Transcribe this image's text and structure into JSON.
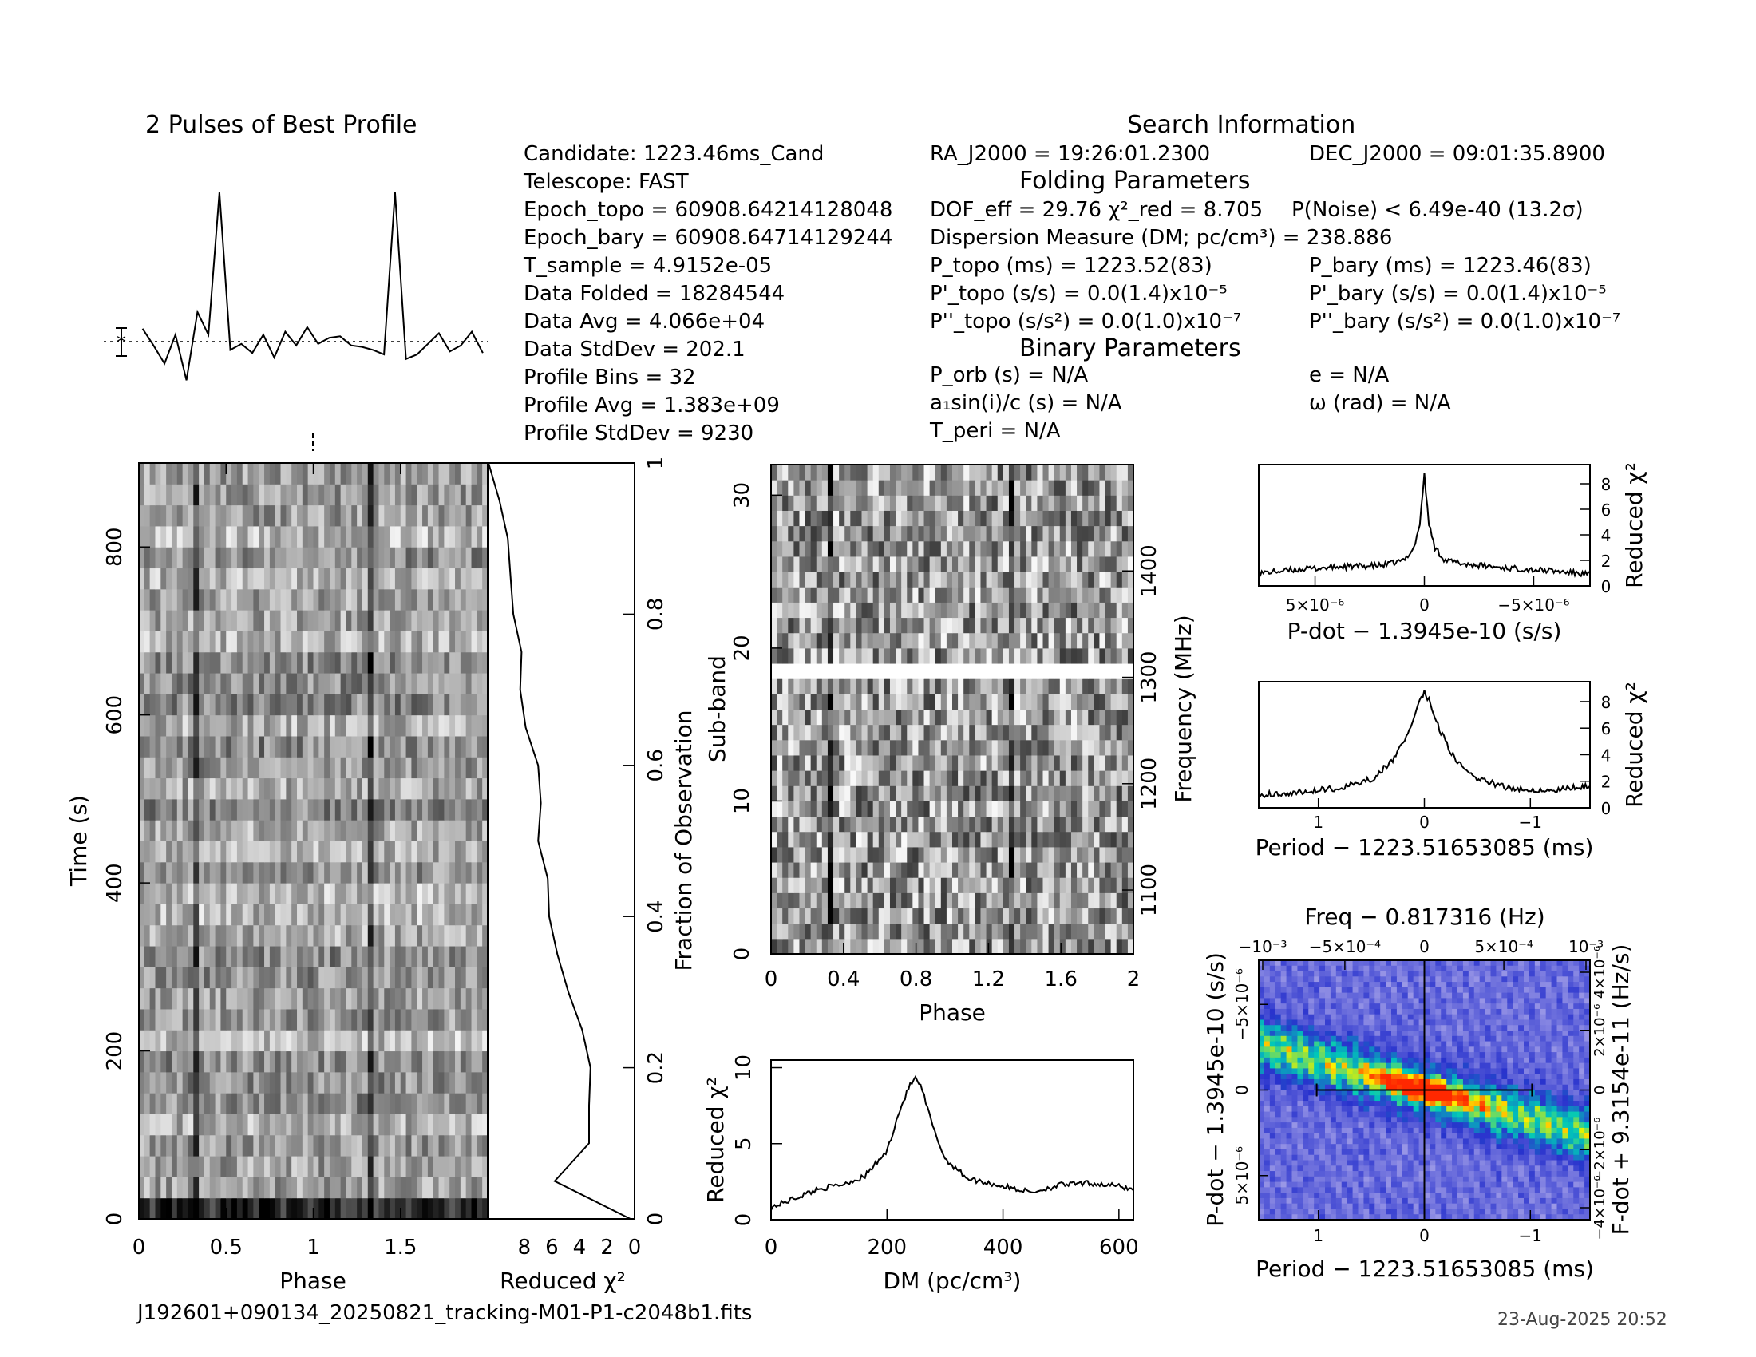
{
  "profile_title": "2 Pulses of Best Profile",
  "search_title": "Search Information",
  "folding_title": "Folding Parameters",
  "binary_title": "Binary Parameters",
  "info_left": [
    "Candidate:  1223.46ms_Cand",
    "Telescope:  FAST",
    "Epoch_topo = 60908.64214128048",
    "Epoch_bary = 60908.64714129244",
    "T_sample     =  4.9152e-05",
    "Data Folded    =  18284544",
    "Data Avg       =  4.066e+04",
    "Data StdDev    =  202.1",
    "Profile Bins   =  32",
    "Profile Avg    =  1.383e+09",
    "Profile StdDev =  9230"
  ],
  "info_mid": {
    "ra": "RA_J2000 = 19:26:01.2300",
    "dof": "DOF_eff = 29.76  χ²_red = 8.705",
    "dm": "Dispersion Measure (DM; pc/cm³) = 238.886",
    "ptopo": "P_topo (ms) =  1223.52(83)",
    "pdtopo": "P'_topo (s/s) = 0.0(1.4)x10⁻⁵",
    "pddtopo": "P''_topo (s/s²) = 0.0(1.0)x10⁻⁷",
    "porb": "P_orb (s) = N/A",
    "a1": "a₁sin(i)/c (s) = N/A",
    "tperi": "T_peri = N/A"
  },
  "info_right": {
    "dec": "DEC_J2000 = 09:01:35.8900",
    "pnoise": "P(Noise) < 6.49e-40  (13.2σ)",
    "pbary": "P_bary (ms) =  1223.46(83)",
    "pdbary": "P'_bary (s/s) = 0.0(1.4)x10⁻⁵",
    "pddbary": "P''_bary (s/s²) = 0.0(1.0)x10⁻⁷",
    "e": "e = N/A",
    "omega": "ω (rad) = N/A"
  },
  "footer_file": "J192601+090134_20250821_tracking-M01-P1-c2048b1.fits",
  "footer_date": "23-Aug-2025 20:52",
  "chart_data": [
    {
      "type": "line",
      "name": "profile",
      "title": "2 Pulses of Best Profile",
      "x": [
        0,
        0.0625,
        0.125,
        0.1875,
        0.25,
        0.3125,
        0.375,
        0.4375,
        0.5,
        0.5625,
        0.625,
        0.6875,
        0.75,
        0.8125,
        0.875,
        0.9375,
        1,
        1.0625,
        1.125,
        1.1875,
        1.25,
        1.3125,
        1.375,
        1.4375,
        1.5,
        1.5625,
        1.625,
        1.6875,
        1.75,
        1.8125,
        1.875,
        1.9375
      ],
      "values": [
        0.8,
        -0.3,
        -1.5,
        0.4,
        -2.6,
        1.9,
        0.4,
        9.8,
        -0.6,
        -0.2,
        -0.8,
        0.4,
        -1.1,
        0.6,
        -0.3,
        0.9,
        -0.2,
        0.2,
        0.3,
        -0.3,
        -0.4,
        -0.6,
        -0.9,
        9.8,
        -1.2,
        -0.9,
        -0.2,
        0.5,
        -0.7,
        -0.3,
        0.6,
        -0.8
      ]
    },
    {
      "type": "heatmap",
      "name": "time-phase",
      "xlabel": "Phase",
      "ylabel": "Time (s)",
      "xticks": [
        "0",
        "0.5",
        "1",
        "1.5"
      ],
      "yticks": [
        "0",
        "200",
        "400",
        "600",
        "800"
      ],
      "ylim": [
        0,
        900
      ],
      "xlim": [
        0,
        2
      ]
    },
    {
      "type": "line",
      "name": "time-chi2",
      "xlabel": "Reduced χ²",
      "ylabel": "Fraction of Observation",
      "xticks": [
        "8",
        "6",
        "4",
        "2",
        "0"
      ],
      "yticks": [
        "0",
        "0.2",
        "0.4",
        "0.6",
        "0.8",
        "1"
      ],
      "fraction": [
        0.0,
        0.05,
        0.1,
        0.15,
        0.2,
        0.25,
        0.3,
        0.35,
        0.4,
        0.45,
        0.5,
        0.55,
        0.6,
        0.65,
        0.7,
        0.75,
        0.8,
        0.85,
        0.9,
        0.95,
        1.0
      ],
      "chi2": [
        0.3,
        5.8,
        3.3,
        3.3,
        3.2,
        3.8,
        4.8,
        5.6,
        6.2,
        6.3,
        7.0,
        6.8,
        7.0,
        7.9,
        8.3,
        8.2,
        8.8,
        9.0,
        9.2,
        9.8,
        10.6
      ]
    },
    {
      "type": "heatmap",
      "name": "subband-phase",
      "xlabel": "Phase",
      "ylabel": "Sub-band",
      "y2label": "Frequency (MHz)",
      "xticks": [
        "0",
        "0.4",
        "0.8",
        "1.2",
        "1.6",
        "2"
      ],
      "yticks": [
        "0",
        "10",
        "20",
        "30"
      ],
      "y2ticks": [
        "1100",
        "1200",
        "1300",
        "1400"
      ],
      "masked_subbands": [
        18
      ]
    },
    {
      "type": "line",
      "name": "dm-chi2",
      "xlabel": "DM (pc/cm³)",
      "ylabel": "Reduced χ²",
      "xticks": [
        "0",
        "200",
        "400",
        "600"
      ],
      "yticks": [
        "0",
        "5",
        "10"
      ],
      "x": [
        0,
        40,
        80,
        120,
        160,
        200,
        220,
        240,
        250,
        260,
        280,
        300,
        340,
        400,
        450,
        500,
        550,
        600,
        625
      ],
      "values": [
        0.8,
        1.4,
        2.0,
        2.3,
        2.8,
        4.5,
        7.0,
        8.9,
        9.3,
        8.6,
        6.0,
        4.0,
        2.7,
        2.2,
        1.8,
        2.3,
        2.4,
        2.2,
        2.0
      ]
    },
    {
      "type": "line",
      "name": "pdot-chi2",
      "xlabel": "P-dot − 1.3945e-10 (s/s)",
      "ylabel": "Reduced χ²",
      "xticks": [
        "5×10⁻⁶",
        "0",
        "−5×10⁻⁶"
      ],
      "yticks": [
        "0",
        "2",
        "4",
        "6",
        "8"
      ],
      "x": [
        8,
        6,
        4,
        2,
        1,
        0.5,
        0.2,
        0,
        -0.2,
        -0.5,
        -1,
        -2,
        -4,
        -6,
        -8
      ],
      "values": [
        1.0,
        1.3,
        1.5,
        1.6,
        2.0,
        3.0,
        5.0,
        8.8,
        5.0,
        3.0,
        2.0,
        1.7,
        1.4,
        1.2,
        0.9
      ]
    },
    {
      "type": "line",
      "name": "period-chi2",
      "xlabel": "Period − 1223.51653085 (ms)",
      "ylabel": "Reduced χ²",
      "xticks": [
        "1",
        "0",
        "−1"
      ],
      "yticks": [
        "0",
        "2",
        "4",
        "6",
        "8"
      ],
      "x": [
        1.6,
        1.2,
        0.8,
        0.5,
        0.3,
        0.15,
        0.05,
        0,
        -0.05,
        -0.15,
        -0.3,
        -0.5,
        -0.8,
        -1.2,
        -1.6
      ],
      "values": [
        1.0,
        1.2,
        1.5,
        2.2,
        3.6,
        5.8,
        8.0,
        8.8,
        8.0,
        5.8,
        3.6,
        2.2,
        1.5,
        1.3,
        1.7
      ]
    },
    {
      "type": "heatmap",
      "name": "p-pdot",
      "title": "Freq − 0.817316 (Hz)",
      "xlabel": "Period − 1223.51653085 (ms)",
      "ylabel": "P-dot − 1.3945e-10 (s/s)",
      "y2label": "F-dot + 9.3154e-11 (Hz/s)",
      "xticks": [
        "1",
        "0",
        "−1"
      ],
      "x2ticks": [
        "−10⁻³",
        "−5×10⁻⁴",
        "0",
        "5×10⁻⁴",
        "10⁻³"
      ],
      "yticks": [
        "−5×10⁻⁶",
        "0",
        "5×10⁻⁶"
      ],
      "y2ticks": [
        "4×10⁻⁶",
        "2×10⁻⁶",
        "0",
        "−2×10⁻⁶",
        "−4×10⁻⁶"
      ]
    }
  ],
  "colors": {
    "ink": "#000000",
    "bg": "#ffffff",
    "heat_low": "#d6d0f0",
    "heat_mid": "#2a30c8",
    "heat_hi": "#ff3000"
  }
}
